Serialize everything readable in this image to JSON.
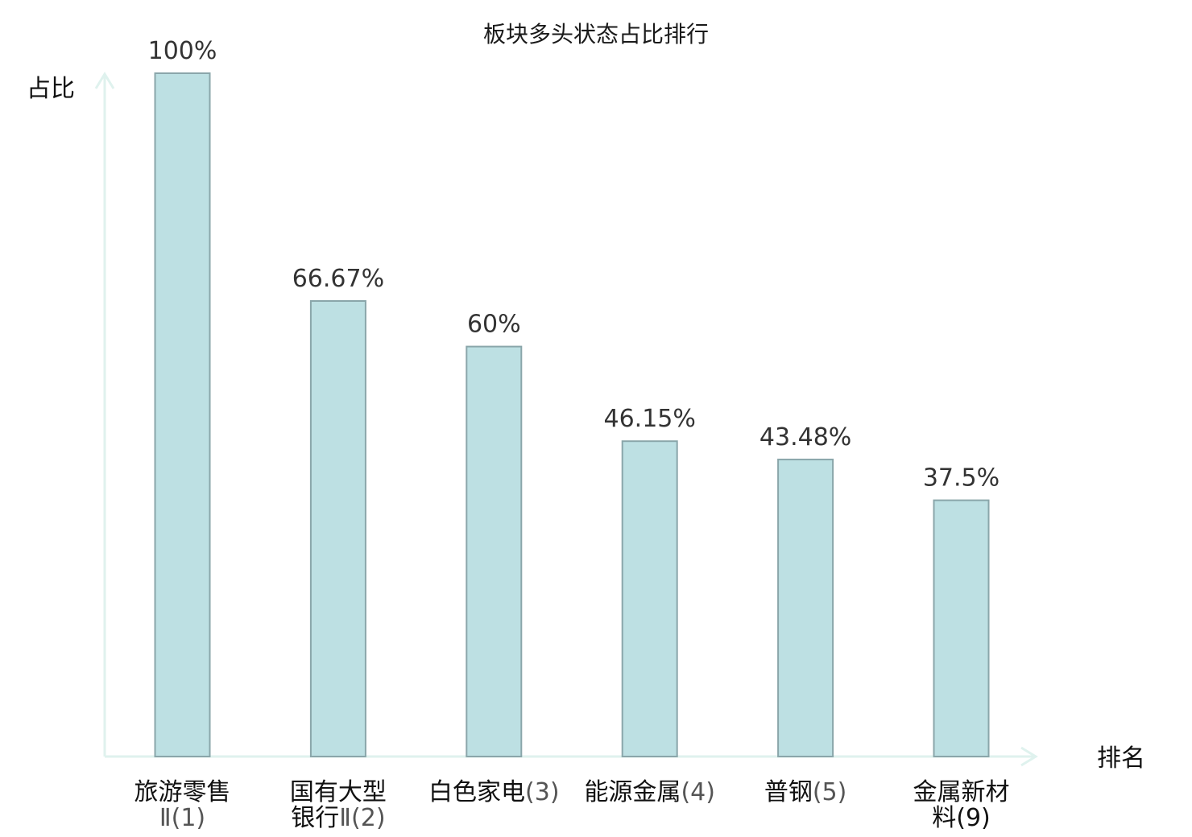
{
  "chart_data": {
    "type": "bar",
    "title": "板块多头状态占比排行",
    "ylabel": "占比",
    "xlabel": "排名",
    "ylim": [
      0,
      100
    ],
    "value_suffix": "%",
    "grid": false,
    "categories": [
      {
        "lines": [
          "旅游零售",
          "Ⅱ(1)"
        ],
        "highlight": false
      },
      {
        "lines": [
          "国有大型",
          "银行Ⅱ(2)"
        ],
        "highlight": false
      },
      {
        "lines": [
          "白色家电(3)"
        ],
        "highlight": false
      },
      {
        "lines": [
          "能源金属(4)"
        ],
        "highlight": false
      },
      {
        "lines": [
          "普钢(5)"
        ],
        "highlight": false
      },
      {
        "lines": [
          "金属新材",
          "料(9)"
        ],
        "highlight": true
      }
    ],
    "values": [
      100,
      66.67,
      60,
      46.15,
      43.48,
      37.5
    ],
    "value_labels": [
      "100%",
      "66.67%",
      "60%",
      "46.15%",
      "43.48%",
      "37.5%"
    ],
    "colors": {
      "bar_fill": "#bde0e3",
      "bar_stroke": "#8aa6aa",
      "axis": "#dff2ee",
      "highlight_text": "#e8161b",
      "rank_text": "#555555"
    }
  }
}
